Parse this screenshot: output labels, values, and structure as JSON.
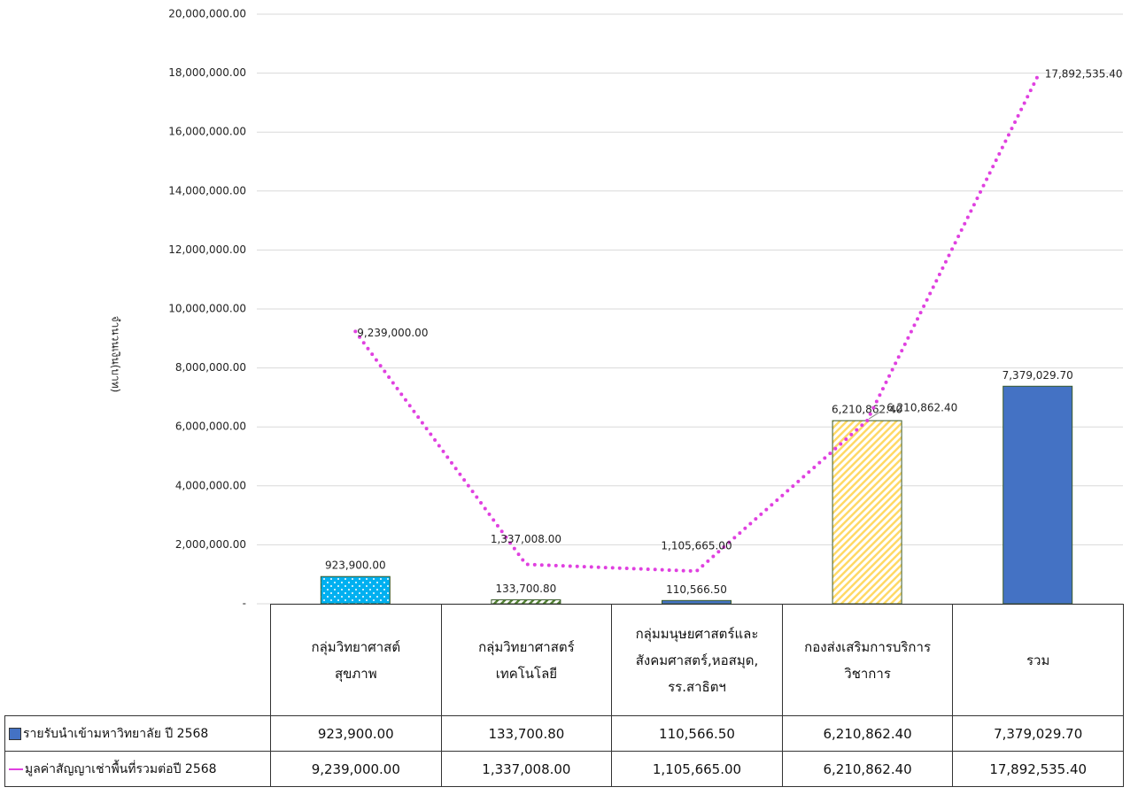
{
  "chart_data": {
    "type": "bar_line",
    "y_label": "จำนวนเงิน(บาท)",
    "categories": [
      "กลุ่มวิทยาศาสต์\nสุขภาพ",
      "กลุ่มวิทยาศาสตร์\nเทคโนโลยี",
      "กลุ่มมนุษยศาสตร์และ\nสังคมศาสตร์,หอสมุด,\nรร.สาธิตฯ",
      "กองส่งเสริมการบริการ\nวิชาการ",
      "รวม"
    ],
    "series": [
      {
        "name": "รายรับนำเข้ามหาวิทยาลัย ปี 2568",
        "type": "bar",
        "color": "#4472c4",
        "colors": [
          "#00b0f0",
          "#548235",
          "#4472c4",
          "#ffd966",
          "#4472c4"
        ],
        "patterns": [
          "dots",
          "hatch",
          null,
          "hatch",
          null
        ],
        "values": [
          923900,
          133700.8,
          110566.5,
          6210862.4,
          7379029.7
        ],
        "value_labels": [
          "923,900.00",
          "133,700.80",
          "110,566.50",
          "6,210,862.40",
          "7,379,029.70"
        ]
      },
      {
        "name": "มูลค่าสัญญาเช่าพื้นที่รวมต่อปี 2568",
        "type": "line",
        "color": "#e040e0",
        "values": [
          9239000,
          1337008,
          1105665,
          6210862.4,
          17892535.4
        ],
        "value_labels": [
          "9,239,000.00",
          "1,337,008.00",
          "1,105,665.00",
          "6,210,862.40",
          "17,892,535.40"
        ]
      }
    ],
    "ylim": [
      0,
      20000000
    ],
    "yticks": [
      {
        "value": 0,
        "label": "-"
      },
      {
        "value": 2000000,
        "label": "2,000,000.00"
      },
      {
        "value": 4000000,
        "label": "4,000,000.00"
      },
      {
        "value": 6000000,
        "label": "6,000,000.00"
      },
      {
        "value": 8000000,
        "label": "8,000,000.00"
      },
      {
        "value": 10000000,
        "label": "10,000,000.00"
      },
      {
        "value": 12000000,
        "label": "12,000,000.00"
      },
      {
        "value": 14000000,
        "label": "14,000,000.00"
      },
      {
        "value": 16000000,
        "label": "16,000,000.00"
      },
      {
        "value": 18000000,
        "label": "18,000,000.00"
      },
      {
        "value": 20000000,
        "label": "20,000,000.00"
      }
    ],
    "grid": true
  }
}
